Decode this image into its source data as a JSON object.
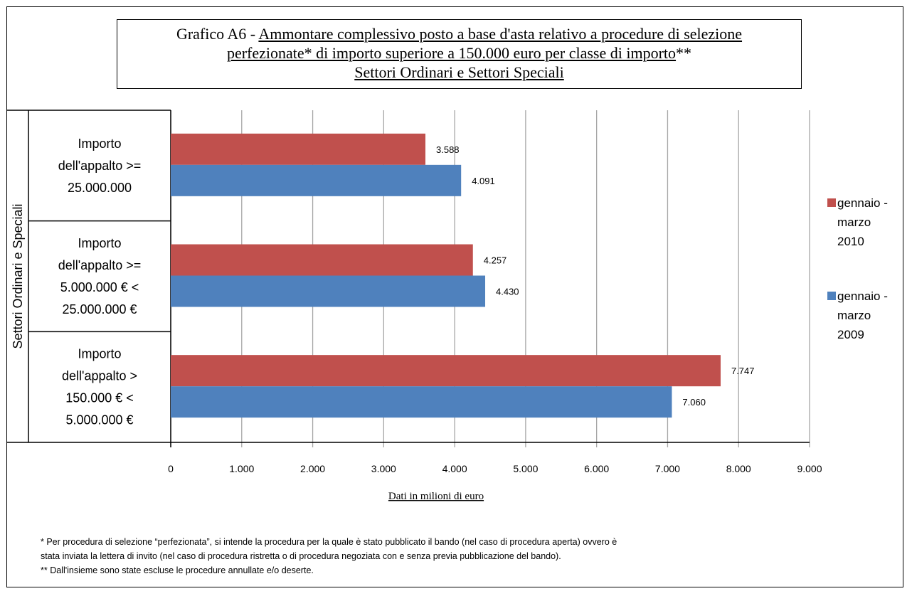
{
  "title": {
    "prefix": "Grafico A6 - ",
    "line1": "Ammontare complessivo posto a base d'asta relativo a procedure di selezione",
    "line2": "perfezionate* di importo superiore a 150.000 euro per classe di importo",
    "line2_suffix": "**",
    "line3": "Settori Ordinari e Settori Speciali"
  },
  "chart_data": {
    "type": "bar",
    "orientation": "horizontal",
    "group_label": "Settori Ordinari e Speciali",
    "categories": [
      [
        "Importo",
        "dell'appalto >=",
        "25.000.000"
      ],
      [
        "Importo",
        "dell'appalto >=",
        "5.000.000 €  <",
        "25.000.000 €"
      ],
      [
        "Importo",
        "dell'appalto >",
        "150.000 € <",
        "5.000.000 €"
      ]
    ],
    "series": [
      {
        "name": "gennaio - marzo 2010",
        "legend_lines": [
          "gennaio -",
          "marzo",
          "2010"
        ],
        "color": "#c0504d",
        "values": [
          3588,
          4257,
          7747
        ],
        "labels": [
          "3.588",
          "4.257",
          "7.747"
        ]
      },
      {
        "name": "gennaio - marzo 2009",
        "legend_lines": [
          "gennaio -",
          "marzo",
          "2009"
        ],
        "color": "#4f81bd",
        "values": [
          4091,
          4430,
          7060
        ],
        "labels": [
          "4.091",
          "4.430",
          "7.060"
        ]
      }
    ],
    "xlim": [
      0,
      9000
    ],
    "xticks": [
      0,
      1000,
      2000,
      3000,
      4000,
      5000,
      6000,
      7000,
      8000,
      9000
    ],
    "xtick_labels": [
      "0",
      "1.000",
      "2.000",
      "3.000",
      "4.000",
      "5.000",
      "6.000",
      "7.000",
      "8.000",
      "9.000"
    ],
    "xlabel": "Dati in milioni di euro",
    "grid": true,
    "legend_position": "right"
  },
  "footnote": {
    "line1": "* Per procedura di selezione “perfezionata”, si intende la procedura per la quale è stato pubblicato il bando (nel caso di procedura aperta) ovvero è",
    "line2": "stata inviata la lettera di invito (nel caso di procedura ristretta o di procedura negoziata con e senza previa pubblicazione del bando).",
    "line3": "** Dall'insieme sono state escluse le procedure annullate e/o deserte."
  }
}
